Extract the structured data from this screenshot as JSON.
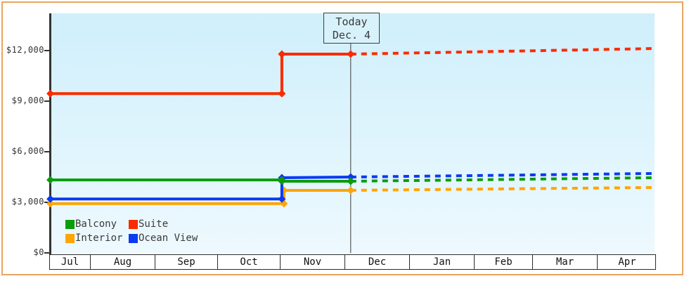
{
  "window": {
    "frame_color": "#e8a55f",
    "background": "#ffffff"
  },
  "today_marker": {
    "line1": "Today",
    "line2": "Dec. 4"
  },
  "chart_data": {
    "type": "line",
    "description": "Cabin price history (solid) and projection after today (dashed)",
    "grid": false,
    "plot_background": {
      "top": "#cfeffb",
      "bottom": "#edf9fe"
    },
    "y_axis": {
      "tick_labels": [
        "$0",
        "$3,000",
        "$6,000",
        "$9,000",
        "$12,000"
      ],
      "tick_values": [
        0,
        3000,
        6000,
        9000,
        12000
      ],
      "range": [
        0,
        14200
      ]
    },
    "x_axis": {
      "labels": [
        "Jul",
        "Aug",
        "Sep",
        "Oct",
        "Nov",
        "Dec",
        "Jan",
        "Feb",
        "Mar",
        "Apr"
      ]
    },
    "today": {
      "label": "Today",
      "date": "Dec. 4"
    },
    "legend_position": "bottom-left",
    "series": [
      {
        "name": "Balcony",
        "color": "#0b9c0b",
        "solid": [
          [
            "Jul 13",
            4330
          ],
          [
            "Nov 1",
            4330
          ],
          [
            "Nov 1",
            4250
          ],
          [
            "Dec 4",
            4250
          ]
        ],
        "projection": [
          [
            "Dec 4",
            4250
          ],
          [
            "Apr 28",
            4460
          ]
        ]
      },
      {
        "name": "Suite",
        "color": "#fa2b00",
        "solid": [
          [
            "Jul 13",
            9450
          ],
          [
            "Nov 1",
            9450
          ],
          [
            "Nov 1",
            11790
          ],
          [
            "Dec 4",
            11790
          ]
        ],
        "projection": [
          [
            "Dec 4",
            11790
          ],
          [
            "Apr 28",
            12120
          ]
        ]
      },
      {
        "name": "Interior",
        "color": "#ffa502",
        "solid": [
          [
            "Jul 13",
            2920
          ],
          [
            "Nov 2",
            2920
          ],
          [
            "Nov 2",
            3710
          ],
          [
            "Dec 4",
            3710
          ]
        ],
        "projection": [
          [
            "Dec 4",
            3710
          ],
          [
            "Apr 28",
            3880
          ]
        ]
      },
      {
        "name": "Ocean View",
        "color": "#0a3af2",
        "solid": [
          [
            "Jul 13",
            3200
          ],
          [
            "Nov 1",
            3200
          ],
          [
            "Nov 1",
            4460
          ],
          [
            "Dec 4",
            4500
          ]
        ],
        "projection": [
          [
            "Dec 4",
            4500
          ],
          [
            "Apr 28",
            4710
          ]
        ]
      }
    ]
  }
}
